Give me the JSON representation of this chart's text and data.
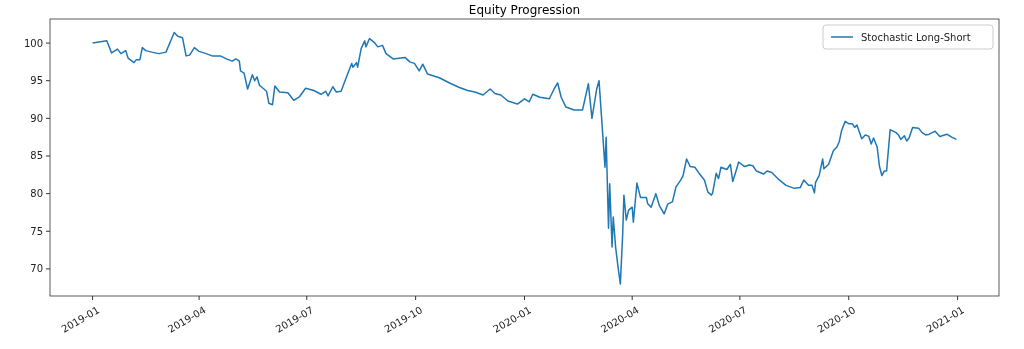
{
  "chart_data": {
    "type": "line",
    "title": "Equity Progression",
    "x": [
      "2019-01-01",
      "2019-01-13",
      "2019-01-17",
      "2019-01-22",
      "2019-01-25",
      "2019-01-29",
      "2019-01-31",
      "2019-02-05",
      "2019-02-07",
      "2019-02-10",
      "2019-02-12",
      "2019-02-15",
      "2019-02-20",
      "2019-02-26",
      "2019-03-04",
      "2019-03-11",
      "2019-03-14",
      "2019-03-18",
      "2019-03-21",
      "2019-03-24",
      "2019-03-26",
      "2019-03-28",
      "2019-04-01",
      "2019-04-07",
      "2019-04-12",
      "2019-04-19",
      "2019-04-24",
      "2019-04-29",
      "2019-05-02",
      "2019-05-05",
      "2019-05-06",
      "2019-05-09",
      "2019-05-12",
      "2019-05-16",
      "2019-05-18",
      "2019-05-20",
      "2019-05-22",
      "2019-05-28",
      "2019-05-30",
      "2019-06-02",
      "2019-06-04",
      "2019-06-08",
      "2019-06-15",
      "2019-06-20",
      "2019-06-25",
      "2019-06-30",
      "2019-07-07",
      "2019-07-13",
      "2019-07-17",
      "2019-07-19",
      "2019-07-23",
      "2019-07-26",
      "2019-07-30",
      "2019-08-05",
      "2019-08-08",
      "2019-08-09",
      "2019-08-12",
      "2019-08-13",
      "2019-08-16",
      "2019-08-19",
      "2019-08-20",
      "2019-08-23",
      "2019-08-27",
      "2019-08-30",
      "2019-09-03",
      "2019-09-06",
      "2019-09-12",
      "2019-09-22",
      "2019-09-26",
      "2019-09-30",
      "2019-10-04",
      "2019-10-07",
      "2019-10-11",
      "2019-10-21",
      "2019-10-31",
      "2019-11-07",
      "2019-11-14",
      "2019-11-20",
      "2019-11-27",
      "2019-12-03",
      "2019-12-07",
      "2019-12-12",
      "2019-12-18",
      "2019-12-26",
      "2020-01-01",
      "2020-01-05",
      "2020-01-08",
      "2020-01-14",
      "2020-01-22",
      "2020-01-26",
      "2020-01-29",
      "2020-02-01",
      "2020-02-05",
      "2020-02-12",
      "2020-02-19",
      "2020-02-24",
      "2020-02-27",
      "2020-03-02",
      "2020-03-04",
      "2020-03-06",
      "2020-03-09",
      "2020-03-10",
      "2020-03-12",
      "2020-03-13",
      "2020-03-15",
      "2020-03-16",
      "2020-03-18",
      "2020-03-20",
      "2020-03-22",
      "2020-03-24",
      "2020-03-25",
      "2020-03-27",
      "2020-03-29",
      "2020-04-01",
      "2020-04-02",
      "2020-04-05",
      "2020-04-08",
      "2020-04-13",
      "2020-04-14",
      "2020-04-17",
      "2020-04-21",
      "2020-04-24",
      "2020-04-28",
      "2020-05-01",
      "2020-05-05",
      "2020-05-08",
      "2020-05-12",
      "2020-05-14",
      "2020-05-17",
      "2020-05-20",
      "2020-05-24",
      "2020-05-28",
      "2020-06-01",
      "2020-06-04",
      "2020-06-07",
      "2020-06-08",
      "2020-06-11",
      "2020-06-13",
      "2020-06-15",
      "2020-06-20",
      "2020-06-23",
      "2020-06-25",
      "2020-06-27",
      "2020-06-30",
      "2020-07-05",
      "2020-07-09",
      "2020-07-12",
      "2020-07-15",
      "2020-07-21",
      "2020-07-24",
      "2020-07-28",
      "2020-08-02",
      "2020-08-09",
      "2020-08-16",
      "2020-08-21",
      "2020-08-24",
      "2020-08-28",
      "2020-08-31",
      "2020-09-02",
      "2020-09-03",
      "2020-09-06",
      "2020-09-09",
      "2020-09-10",
      "2020-09-14",
      "2020-09-18",
      "2020-09-21",
      "2020-09-23",
      "2020-09-25",
      "2020-09-28",
      "2020-10-01",
      "2020-10-04",
      "2020-10-06",
      "2020-10-08",
      "2020-10-12",
      "2020-10-15",
      "2020-10-18",
      "2020-10-20",
      "2020-10-22",
      "2020-10-25",
      "2020-10-27",
      "2020-10-29",
      "2020-10-31",
      "2020-11-02",
      "2020-11-05",
      "2020-11-10",
      "2020-11-12",
      "2020-11-14",
      "2020-11-17",
      "2020-11-19",
      "2020-11-21",
      "2020-11-24",
      "2020-11-29",
      "2020-12-02",
      "2020-12-05",
      "2020-12-08",
      "2020-12-13",
      "2020-12-17",
      "2020-12-23",
      "2020-12-27",
      "2020-12-31"
    ],
    "series": [
      {
        "name": "Stochastic Long-Short",
        "color": "#1f77b4",
        "values": [
          100.0,
          100.3,
          98.7,
          99.2,
          98.6,
          99.0,
          98.0,
          97.4,
          97.8,
          97.8,
          99.4,
          99.0,
          98.8,
          98.6,
          98.8,
          101.4,
          100.9,
          100.7,
          98.3,
          98.4,
          98.9,
          99.4,
          98.9,
          98.6,
          98.3,
          98.3,
          97.9,
          97.6,
          97.9,
          97.6,
          96.3,
          96.0,
          93.9,
          95.8,
          95.0,
          95.5,
          94.4,
          93.6,
          92.0,
          91.8,
          94.3,
          93.5,
          93.4,
          92.4,
          92.9,
          94.0,
          93.7,
          93.2,
          93.6,
          93.0,
          94.2,
          93.5,
          93.6,
          96.1,
          97.3,
          96.8,
          97.4,
          96.8,
          99.3,
          100.3,
          99.5,
          100.6,
          100.1,
          99.5,
          99.7,
          98.6,
          97.9,
          98.1,
          97.5,
          97.3,
          96.3,
          97.2,
          95.9,
          95.4,
          94.6,
          94.1,
          93.7,
          93.5,
          93.1,
          93.9,
          93.3,
          93.1,
          92.3,
          91.9,
          92.6,
          92.2,
          93.2,
          92.8,
          92.6,
          93.9,
          94.7,
          92.8,
          91.5,
          91.1,
          91.1,
          94.6,
          90.0,
          93.9,
          95.0,
          90.4,
          83.5,
          87.5,
          75.4,
          81.3,
          72.9,
          76.9,
          72.9,
          70.3,
          68.0,
          74.7,
          79.8,
          76.5,
          77.8,
          78.2,
          76.2,
          81.4,
          79.5,
          79.5,
          78.7,
          78.2,
          80.0,
          78.4,
          77.3,
          78.6,
          78.9,
          80.9,
          81.8,
          82.4,
          84.6,
          83.6,
          83.5,
          82.6,
          81.8,
          80.2,
          79.8,
          80.1,
          82.7,
          82.0,
          83.5,
          83.2,
          83.9,
          81.6,
          82.6,
          84.2,
          83.6,
          83.8,
          83.7,
          83.0,
          82.6,
          83.0,
          82.8,
          82.0,
          81.1,
          80.7,
          80.8,
          81.8,
          81.1,
          81.1,
          80.1,
          81.5,
          82.4,
          84.6,
          83.3,
          83.9,
          85.7,
          86.2,
          86.9,
          88.4,
          89.6,
          89.3,
          89.3,
          88.8,
          89.1,
          87.3,
          87.8,
          87.6,
          86.6,
          87.4,
          86.2,
          83.6,
          82.4,
          83.0,
          83.0,
          88.5,
          88.1,
          87.8,
          87.2,
          87.7,
          87.0,
          87.4,
          88.8,
          88.7,
          88.1,
          87.8,
          87.9,
          88.3,
          87.6,
          87.9,
          87.5,
          87.2
        ]
      }
    ],
    "xlim": [
      "2018-11-26",
      "2021-02-05"
    ],
    "xticks": [
      {
        "value": "2019-01-01",
        "label": "2019-01"
      },
      {
        "value": "2019-04-01",
        "label": "2019-04"
      },
      {
        "value": "2019-07-01",
        "label": "2019-07"
      },
      {
        "value": "2019-10-01",
        "label": "2019-10"
      },
      {
        "value": "2020-01-01",
        "label": "2020-01"
      },
      {
        "value": "2020-04-01",
        "label": "2020-04"
      },
      {
        "value": "2020-07-01",
        "label": "2020-07"
      },
      {
        "value": "2020-10-01",
        "label": "2020-10"
      },
      {
        "value": "2021-01-01",
        "label": "2021-01"
      }
    ],
    "ylim": [
      66.4,
      103.2
    ],
    "yticks": [
      70,
      75,
      80,
      85,
      90,
      95,
      100
    ],
    "legend": "top right",
    "grid": false,
    "line_style": "solid",
    "marker": "none"
  }
}
